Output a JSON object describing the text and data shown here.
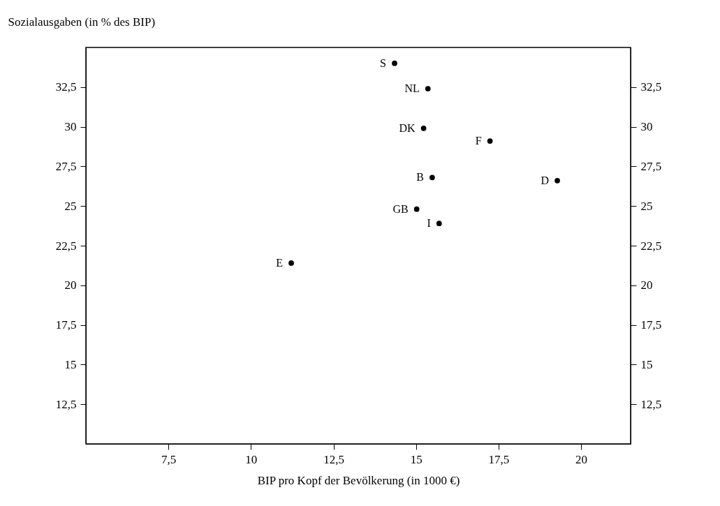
{
  "chart_data": {
    "type": "scatter",
    "xlabel": "BIP pro Kopf der Bevölkerung (in 1000 €)",
    "ylabel": "Sozialausgaben (in % des BIP)",
    "xlim": [
      5,
      21.5
    ],
    "ylim": [
      10,
      35
    ],
    "y2lim": [
      10,
      35
    ],
    "xticks": [
      {
        "value": 7.5,
        "label": "7,5"
      },
      10,
      {
        "value": 12.5,
        "label": "12,5"
      },
      15,
      {
        "value": 17.5,
        "label": "17,5"
      },
      20
    ],
    "yticks": [
      {
        "value": 12.5,
        "label": "12,5"
      },
      15,
      {
        "value": 17.5,
        "label": "17,5"
      },
      20,
      {
        "value": 22.5,
        "label": "22,5"
      },
      25,
      {
        "value": 27.5,
        "label": "27,5"
      },
      30,
      {
        "value": 32.5,
        "label": "32,5"
      }
    ],
    "y2ticks": [
      {
        "value": 12.5,
        "label": "12,5"
      },
      15,
      {
        "value": 17.5,
        "label": "17,5"
      },
      20,
      {
        "value": 22.5,
        "label": "22,5"
      },
      25,
      {
        "value": 27.5,
        "label": "27,5"
      },
      30,
      {
        "value": 32.5,
        "label": "32,5"
      }
    ],
    "marker": "circle",
    "legend": false,
    "series": [
      {
        "name": "S",
        "color": "#000000",
        "x": [
          14.35
        ],
        "values": [
          34.0
        ]
      },
      {
        "name": "NL",
        "color": "#000000",
        "x": [
          15.36
        ],
        "values": [
          32.4
        ]
      },
      {
        "name": "DK",
        "color": "#000000",
        "x": [
          15.23
        ],
        "values": [
          29.9
        ]
      },
      {
        "name": "F",
        "color": "#000000",
        "x": [
          17.24
        ],
        "values": [
          29.1
        ]
      },
      {
        "name": "B",
        "color": "#000000",
        "x": [
          15.49
        ],
        "values": [
          26.8
        ]
      },
      {
        "name": "D",
        "color": "#000000",
        "x": [
          19.28
        ],
        "values": [
          26.6
        ]
      },
      {
        "name": "GB",
        "color": "#000000",
        "x": [
          15.02
        ],
        "values": [
          24.8
        ]
      },
      {
        "name": "I",
        "color": "#000000",
        "x": [
          15.7
        ],
        "values": [
          23.9
        ]
      },
      {
        "name": "E",
        "color": "#000000",
        "x": [
          11.22
        ],
        "values": [
          21.4
        ]
      }
    ]
  }
}
